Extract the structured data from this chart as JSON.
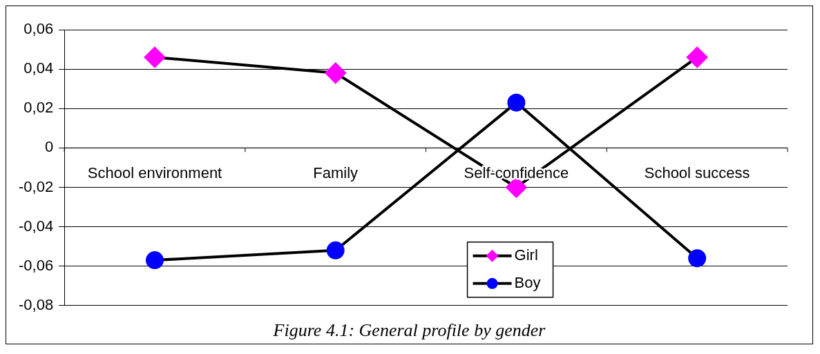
{
  "chart_data": {
    "type": "line",
    "title": "Figure 4.1: General profile by gender",
    "categories": [
      "School environment",
      "Family",
      "Self-confidence",
      "School success"
    ],
    "series": [
      {
        "name": "Girl",
        "color": "#ff00ff",
        "marker": "diamond",
        "values": [
          0.046,
          0.038,
          -0.02,
          0.046
        ]
      },
      {
        "name": "Boy",
        "color": "#0000ff",
        "marker": "circle",
        "values": [
          -0.057,
          -0.052,
          0.023,
          -0.056
        ]
      }
    ],
    "ylim": [
      -0.08,
      0.06
    ],
    "yticks": [
      {
        "value": -0.08,
        "label": "-0,08"
      },
      {
        "value": -0.06,
        "label": "-0,06"
      },
      {
        "value": -0.04,
        "label": "-0,04"
      },
      {
        "value": -0.02,
        "label": "-0,02"
      },
      {
        "value": 0,
        "label": "0"
      },
      {
        "value": 0.02,
        "label": "0,02"
      },
      {
        "value": 0.04,
        "label": "0,04"
      },
      {
        "value": 0.06,
        "label": "0,06"
      }
    ],
    "grid": "y",
    "legend": "bottom",
    "line_style": "solid"
  }
}
